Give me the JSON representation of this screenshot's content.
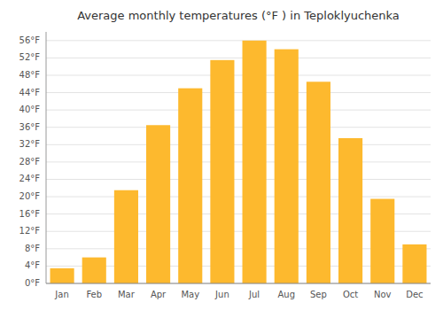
{
  "chart_data": {
    "type": "bar",
    "title": "Average monthly temperatures (°F ) in Teploklyuchenka",
    "categories": [
      "Jan",
      "Feb",
      "Mar",
      "Apr",
      "May",
      "Jun",
      "Jul",
      "Aug",
      "Sep",
      "Oct",
      "Nov",
      "Dec"
    ],
    "values": [
      3.5,
      6.0,
      21.5,
      36.5,
      45.0,
      51.5,
      56.0,
      54.0,
      46.5,
      33.5,
      19.5,
      9.0
    ],
    "color": "#FDB92E",
    "ylim": [
      0,
      58
    ],
    "yticks": [
      {
        "value": 0,
        "label": "0°F"
      },
      {
        "value": 4,
        "label": "4°F"
      },
      {
        "value": 8,
        "label": "8°F"
      },
      {
        "value": 12,
        "label": "12°F"
      },
      {
        "value": 16,
        "label": "16°F"
      },
      {
        "value": 20,
        "label": "20°F"
      },
      {
        "value": 24,
        "label": "24°F"
      },
      {
        "value": 28,
        "label": "28°F"
      },
      {
        "value": 32,
        "label": "32°F"
      },
      {
        "value": 36,
        "label": "36°F"
      },
      {
        "value": 40,
        "label": "40°F"
      },
      {
        "value": 44,
        "label": "44°F"
      },
      {
        "value": 48,
        "label": "48°F"
      },
      {
        "value": 52,
        "label": "52°F"
      },
      {
        "value": 56,
        "label": "56°F"
      }
    ],
    "grid": true
  }
}
